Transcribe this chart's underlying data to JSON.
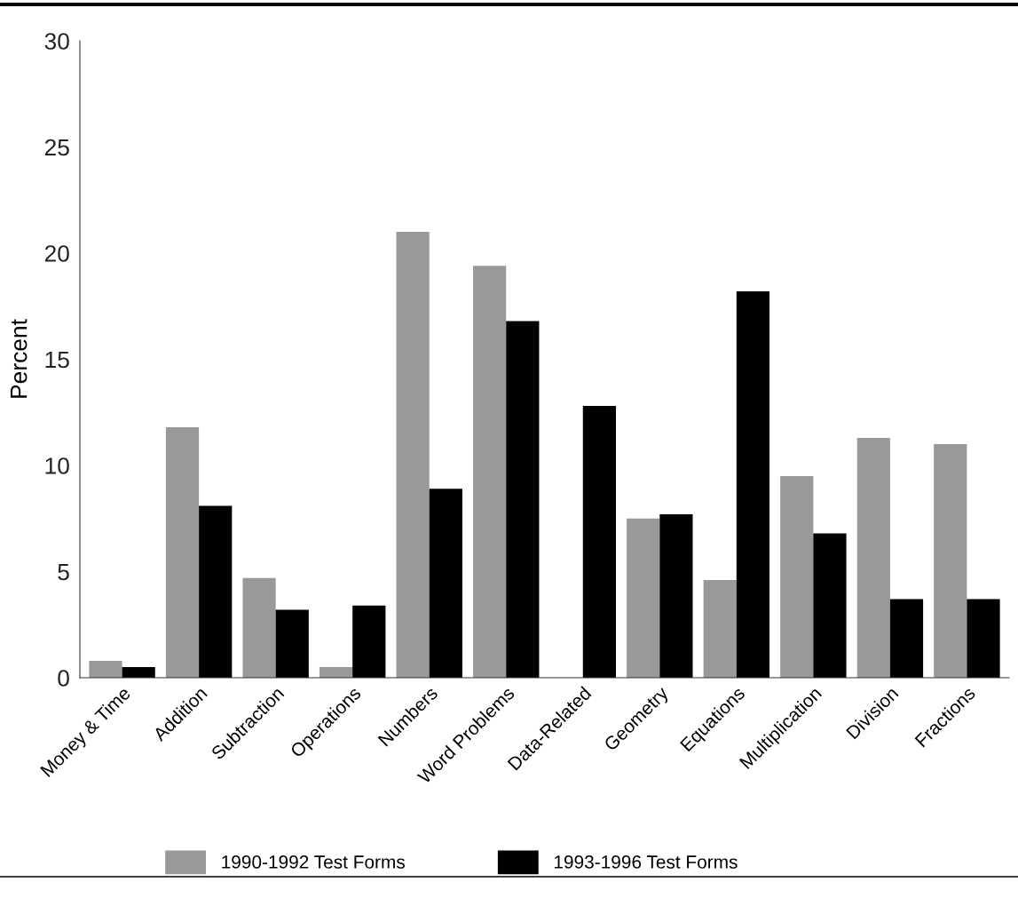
{
  "chart_data": {
    "type": "bar",
    "ylabel": "Percent",
    "categories": [
      "Money & Time",
      "Addition",
      "Subtraction",
      "Operations",
      "Numbers",
      "Word Problems",
      "Data-Related",
      "Geometry",
      "Equations",
      "Multiplication",
      "Division",
      "Fractions"
    ],
    "series": [
      {
        "name": "1990-1992 Test Forms",
        "color": "#999999",
        "values": [
          0.8,
          11.8,
          4.7,
          0.5,
          21.0,
          19.4,
          0,
          7.5,
          4.6,
          9.5,
          11.3,
          11.0
        ]
      },
      {
        "name": "1993-1996 Test Forms",
        "color": "#000000",
        "values": [
          0.5,
          8.1,
          3.2,
          3.4,
          8.9,
          16.8,
          12.8,
          7.7,
          18.2,
          6.8,
          3.7,
          3.7
        ]
      }
    ],
    "ylim": [
      0,
      30
    ],
    "yticks": [
      0,
      5,
      10,
      15,
      20,
      25,
      30
    ],
    "grid": false,
    "legend": "bottom"
  }
}
